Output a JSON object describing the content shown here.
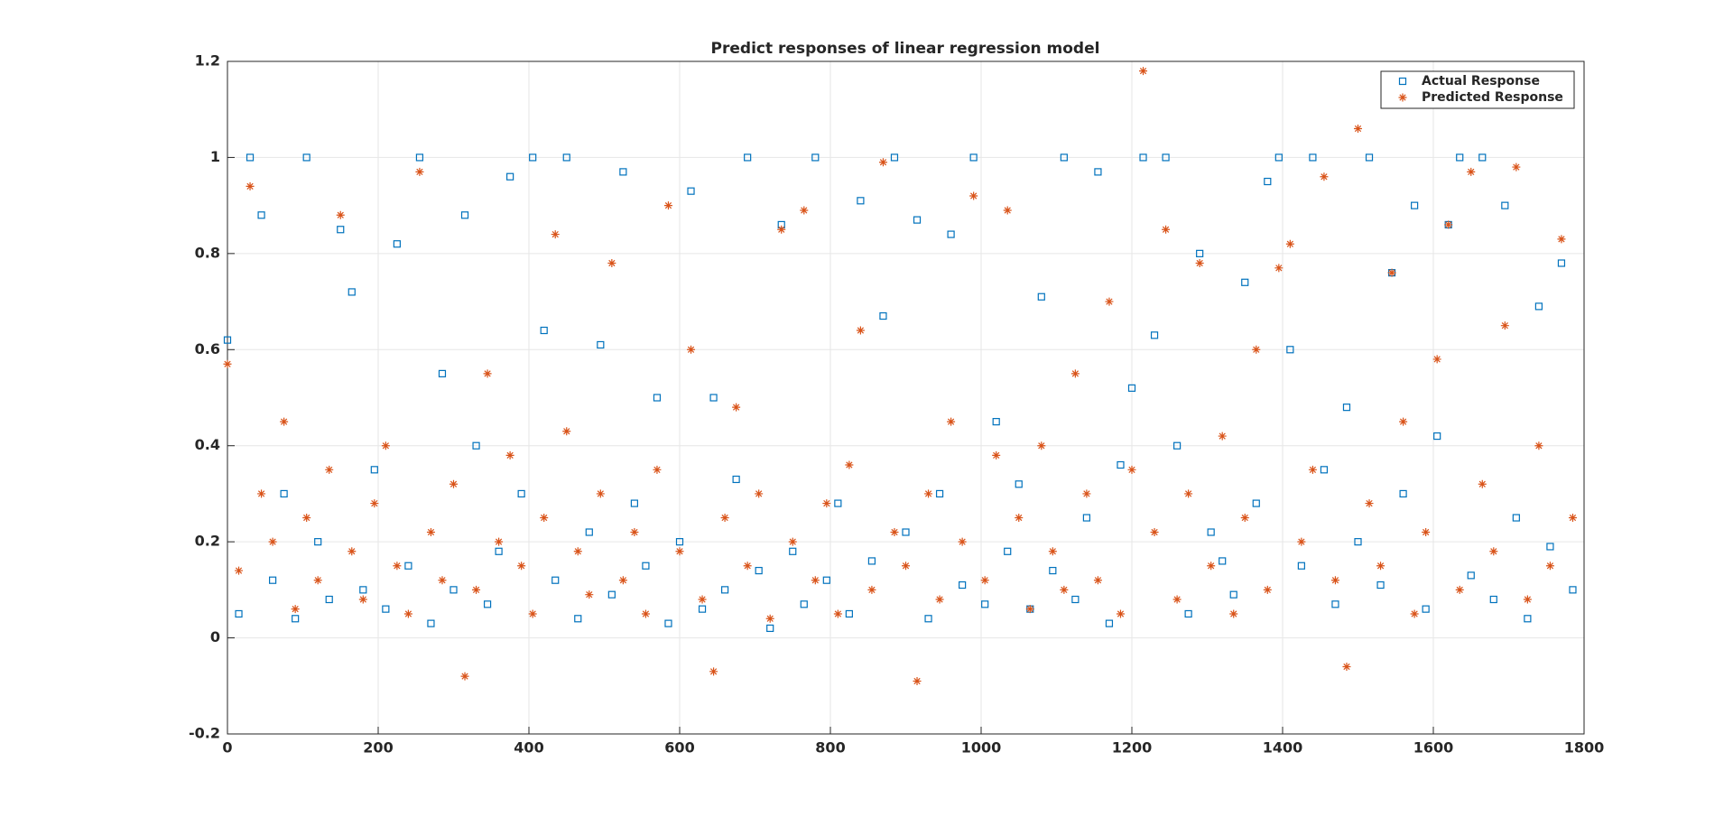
{
  "chart_data": {
    "type": "scatter",
    "title": "Predict responses of linear regression model",
    "x": [
      0,
      15,
      30,
      45,
      60,
      75,
      90,
      105,
      120,
      135,
      150,
      165,
      180,
      195,
      210,
      225,
      240,
      255,
      270,
      285,
      300,
      315,
      330,
      345,
      360,
      375,
      390,
      405,
      420,
      435,
      450,
      465,
      480,
      495,
      510,
      525,
      540,
      555,
      570,
      585,
      600,
      615,
      630,
      645,
      660,
      675,
      690,
      705,
      720,
      735,
      750,
      765,
      780,
      795,
      810,
      825,
      840,
      855,
      870,
      885,
      900,
      915,
      930,
      945,
      960,
      975,
      990,
      1005,
      1020,
      1035,
      1050,
      1065,
      1080,
      1095,
      1110,
      1125,
      1140,
      1155,
      1170,
      1185,
      1200,
      1215,
      1230,
      1245,
      1260,
      1275,
      1290,
      1305,
      1320,
      1335,
      1350,
      1365,
      1380,
      1395,
      1410,
      1425,
      1440,
      1455,
      1470,
      1485,
      1500,
      1515,
      1530,
      1545,
      1560,
      1575,
      1590,
      1605,
      1620,
      1635,
      1650,
      1665,
      1680,
      1695,
      1710,
      1725,
      1740,
      1755,
      1770,
      1785
    ],
    "series": [
      {
        "name": "Actual Response",
        "color": "#0072bd",
        "marker": "square",
        "values": [
          0.62,
          0.05,
          1,
          0.88,
          0.12,
          0.3,
          0.04,
          1,
          0.2,
          0.08,
          0.85,
          0.72,
          0.1,
          0.35,
          0.06,
          0.82,
          0.15,
          1,
          0.03,
          0.55,
          0.1,
          0.88,
          0.4,
          0.07,
          0.18,
          0.96,
          0.3,
          1,
          0.64,
          0.12,
          1,
          0.04,
          0.22,
          0.61,
          0.09,
          0.97,
          0.28,
          0.15,
          0.5,
          0.03,
          0.2,
          0.93,
          0.06,
          0.5,
          0.1,
          0.33,
          1,
          0.14,
          0.02,
          0.86,
          0.18,
          0.07,
          1,
          0.12,
          0.28,
          0.05,
          0.91,
          0.16,
          0.67,
          1,
          0.22,
          0.87,
          0.04,
          0.3,
          0.84,
          0.11,
          1,
          0.07,
          0.45,
          0.18,
          0.32,
          0.06,
          0.71,
          0.14,
          1,
          0.08,
          0.25,
          0.97,
          0.03,
          0.36,
          0.52,
          1,
          0.63,
          1,
          0.4,
          0.05,
          0.8,
          0.22,
          0.16,
          0.09,
          0.74,
          0.28,
          0.95,
          1,
          0.6,
          0.15,
          1,
          0.35,
          0.07,
          0.48,
          0.2,
          1,
          0.11,
          0.76,
          0.3,
          0.9,
          0.06,
          0.42,
          0.86,
          1,
          0.13,
          1,
          0.08,
          0.9,
          0.25,
          0.04,
          0.69,
          0.19,
          0.78,
          0.1
        ]
      },
      {
        "name": "Predicted Response",
        "color": "#d95319",
        "marker": "star",
        "values": [
          0.57,
          0.14,
          0.94,
          0.3,
          0.2,
          0.45,
          0.06,
          0.25,
          0.12,
          0.35,
          0.88,
          0.18,
          0.08,
          0.28,
          0.4,
          0.15,
          0.05,
          0.97,
          0.22,
          0.12,
          0.32,
          -0.08,
          0.1,
          0.55,
          0.2,
          0.38,
          0.15,
          0.05,
          0.25,
          0.84,
          0.43,
          0.18,
          0.09,
          0.3,
          0.78,
          0.12,
          0.22,
          0.05,
          0.35,
          0.9,
          0.18,
          0.6,
          0.08,
          -0.07,
          0.25,
          0.48,
          0.15,
          0.3,
          0.04,
          0.85,
          0.2,
          0.89,
          0.12,
          0.28,
          0.05,
          0.36,
          0.64,
          0.1,
          0.99,
          0.22,
          0.15,
          -0.09,
          0.3,
          0.08,
          0.45,
          0.2,
          0.92,
          0.12,
          0.38,
          0.89,
          0.25,
          0.06,
          0.4,
          0.18,
          0.1,
          0.55,
          0.3,
          0.12,
          0.7,
          0.05,
          0.35,
          1.18,
          0.22,
          0.85,
          0.08,
          0.3,
          0.78,
          0.15,
          0.42,
          0.05,
          0.25,
          0.6,
          0.1,
          0.77,
          0.82,
          0.2,
          0.35,
          0.96,
          0.12,
          -0.06,
          1.06,
          0.28,
          0.15,
          0.76,
          0.45,
          0.05,
          0.22,
          0.58,
          0.86,
          0.1,
          0.97,
          0.32,
          0.18,
          0.65,
          0.98,
          0.08,
          0.4,
          0.15,
          0.83,
          0.25
        ]
      }
    ],
    "xlim": [
      0,
      1800
    ],
    "xticks": [
      0,
      200,
      400,
      600,
      800,
      1000,
      1200,
      1400,
      1600,
      1800
    ],
    "ylim": [
      -0.2,
      1.2
    ],
    "yticks": [
      -0.2,
      0,
      0.2,
      0.4,
      0.6,
      0.8,
      1,
      1.2
    ],
    "grid": true,
    "legend": "northeast"
  }
}
